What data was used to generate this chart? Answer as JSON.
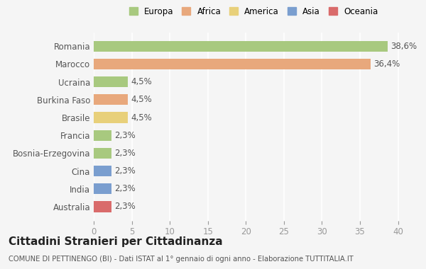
{
  "countries": [
    "Romania",
    "Marocco",
    "Ucraina",
    "Burkina Faso",
    "Brasile",
    "Francia",
    "Bosnia-Erzegovina",
    "Cina",
    "India",
    "Australia"
  ],
  "values": [
    38.6,
    36.4,
    4.5,
    4.5,
    4.5,
    2.3,
    2.3,
    2.3,
    2.3,
    2.3
  ],
  "labels": [
    "38,6%",
    "36,4%",
    "4,5%",
    "4,5%",
    "4,5%",
    "2,3%",
    "2,3%",
    "2,3%",
    "2,3%",
    "2,3%"
  ],
  "continents": [
    "Europa",
    "Africa",
    "Europa",
    "Africa",
    "America",
    "Europa",
    "Europa",
    "Asia",
    "Asia",
    "Oceania"
  ],
  "colors": {
    "Europa": "#a8c97f",
    "Africa": "#e8a87c",
    "America": "#e8d07a",
    "Asia": "#7a9ecf",
    "Oceania": "#d96b6b"
  },
  "legend_order": [
    "Europa",
    "Africa",
    "America",
    "Asia",
    "Oceania"
  ],
  "background_color": "#f5f5f5",
  "title": "Cittadini Stranieri per Cittadinanza",
  "subtitle": "COMUNE DI PETTINENGO (BI) - Dati ISTAT al 1° gennaio di ogni anno - Elaborazione TUTTITALIA.IT",
  "xlim": [
    0,
    42
  ],
  "xticks": [
    0,
    5,
    10,
    15,
    20,
    25,
    30,
    35,
    40
  ]
}
